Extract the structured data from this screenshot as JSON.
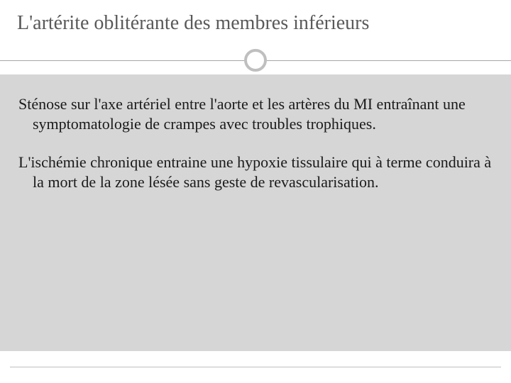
{
  "slide": {
    "title": "L'artérite oblitérante des membres inférieurs",
    "paragraphs": [
      "Sténose sur l'axe artériel entre l'aorte et les artères du MI entraînant une symptomatologie de crampes avec troubles trophiques.",
      "L'ischémie chronique entraine une hypoxie tissulaire qui à terme conduira à la mort de la zone lésée sans geste de revascularisation."
    ]
  },
  "style": {
    "title_color": "#595959",
    "title_fontsize": 28,
    "body_fontsize": 22,
    "body_color": "#1a1a1a",
    "content_bg": "#d6d6d6",
    "page_bg": "#ffffff",
    "divider_line_color": "#a6a6a6",
    "divider_circle_border": "#bfbfbf",
    "divider_circle_size": 32,
    "divider_circle_border_width": 4,
    "footer_line_color": "#bfbfbf"
  }
}
